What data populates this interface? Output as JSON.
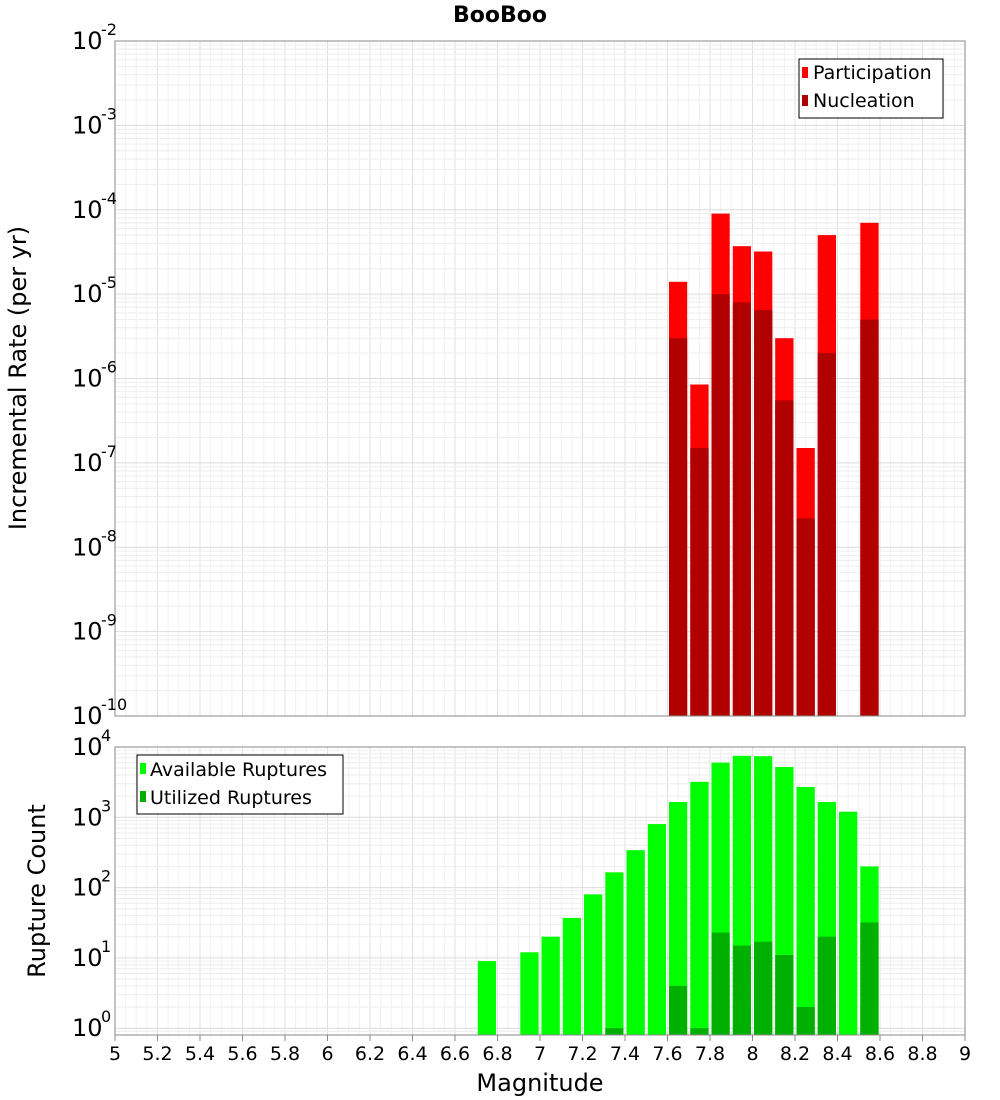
{
  "chart_title": "BooBoo",
  "x_axis": {
    "label": "Magnitude",
    "min": 5,
    "max": 9,
    "ticks": [
      "5",
      "5.2",
      "5.4",
      "5.6",
      "5.8",
      "6",
      "6.2",
      "6.4",
      "6.6",
      "6.8",
      "7",
      "7.2",
      "7.4",
      "7.6",
      "7.8",
      "8",
      "8.2",
      "8.4",
      "8.6",
      "8.8",
      "9"
    ]
  },
  "colors": {
    "participation": "#ff0000",
    "nucleation": "#b00000",
    "available": "#00ff00",
    "utilized": "#00b000"
  },
  "chart_data": [
    {
      "type": "bar",
      "name": "rate",
      "ylabel": "Incremental Rate (per yr)",
      "yscale": "log",
      "ylim": [
        1e-10,
        0.01
      ],
      "ytick_exponents": [
        -10,
        -9,
        -8,
        -7,
        -6,
        -5,
        -4,
        -3,
        -2
      ],
      "legend_placement": "top-right",
      "x": [
        7.65,
        7.75,
        7.85,
        7.95,
        8.05,
        8.15,
        8.25,
        8.35,
        8.55
      ],
      "series": [
        {
          "name": "Participation",
          "values": [
            1.4e-05,
            8.5e-07,
            9e-05,
            3.7e-05,
            3.2e-05,
            3e-06,
            1.5e-07,
            5e-05,
            7e-05
          ]
        },
        {
          "name": "Nucleation",
          "values": [
            3e-06,
            1.5e-07,
            1e-05,
            8e-06,
            6.5e-06,
            5.5e-07,
            2.2e-08,
            2e-06,
            5e-06
          ]
        }
      ]
    },
    {
      "type": "bar",
      "name": "ruptures",
      "ylabel": "Rupture Count",
      "yscale": "log",
      "ylim": [
        0.8,
        10000
      ],
      "ytick_exponents": [
        0,
        1,
        2,
        3,
        4
      ],
      "legend_placement": "top-left",
      "x": [
        6.75,
        6.95,
        7.05,
        7.15,
        7.25,
        7.35,
        7.45,
        7.55,
        7.65,
        7.75,
        7.85,
        7.95,
        8.05,
        8.15,
        8.25,
        8.35,
        8.45,
        8.55
      ],
      "series": [
        {
          "name": "Available Ruptures",
          "values": [
            9,
            12,
            20,
            37,
            80,
            165,
            340,
            800,
            1650,
            3200,
            6000,
            7500,
            7400,
            5200,
            2700,
            1650,
            1200,
            200
          ]
        },
        {
          "name": "Utilized Ruptures",
          "values": [
            null,
            null,
            null,
            null,
            null,
            1,
            null,
            null,
            4,
            1,
            23,
            15,
            17,
            11,
            2,
            20,
            null,
            32
          ]
        }
      ]
    }
  ]
}
